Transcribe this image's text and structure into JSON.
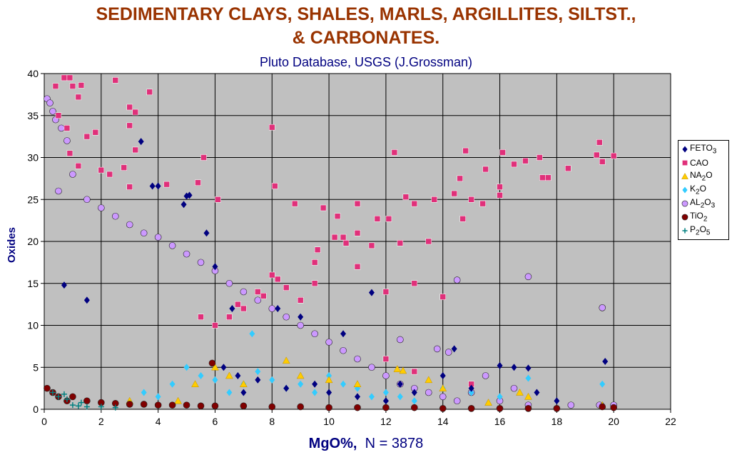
{
  "title_line1": "SEDIMENTARY CLAYS, SHALES, MARLS, ARGILLITES, SILTST.,",
  "title_line2": "& CARBONATES.",
  "subtitle": "Pluto Database, USGS (J.Grossman)",
  "xlabel_main": "MgO%,",
  "xlabel_count": "N = 3878",
  "ylabel": "Oxides",
  "chart_data": {
    "type": "scatter",
    "title": "SEDIMENTARY CLAYS, SHALES, MARLS, ARGILLITES, SILTST., & CARBONATES.",
    "subtitle": "Pluto Database, USGS (J.Grossman)",
    "xlabel": "MgO%,  N = 3878",
    "ylabel": "Oxides",
    "xlim": [
      0,
      22
    ],
    "ylim": [
      0,
      40
    ],
    "xticks": [
      0,
      2,
      4,
      6,
      8,
      10,
      12,
      14,
      16,
      18,
      20,
      22
    ],
    "yticks": [
      0,
      5,
      10,
      15,
      20,
      25,
      30,
      35,
      40
    ],
    "grid": true,
    "plot_background": "#c0c0c0",
    "legend_position": "right",
    "series": [
      {
        "name": "FETO3",
        "label_base": "FETO",
        "label_sub": "3",
        "marker": "diamond",
        "color": "#000080",
        "points": [
          [
            3.4,
            31.9
          ],
          [
            3.8,
            26.6
          ],
          [
            4.0,
            26.6
          ],
          [
            4.9,
            24.4
          ],
          [
            5.0,
            25.4
          ],
          [
            5.1,
            25.5
          ],
          [
            5.7,
            21.0
          ],
          [
            6.0,
            17.0
          ],
          [
            6.6,
            12.0
          ],
          [
            8.2,
            12.0
          ],
          [
            9.0,
            11.0
          ],
          [
            10.5,
            9.0
          ],
          [
            11.5,
            13.9
          ],
          [
            12.5,
            3.0
          ],
          [
            13.0,
            2.0
          ],
          [
            14.0,
            4.0
          ],
          [
            14.4,
            7.2
          ],
          [
            15.0,
            2.5
          ],
          [
            16.0,
            5.2
          ],
          [
            16.5,
            5.0
          ],
          [
            17.0,
            4.9
          ],
          [
            17.3,
            2.0
          ],
          [
            18.0,
            1.0
          ],
          [
            19.7,
            5.7
          ],
          [
            19.6,
            0.5
          ],
          [
            7.0,
            2.0
          ],
          [
            7.5,
            3.5
          ],
          [
            8.5,
            2.5
          ],
          [
            9.5,
            3.0
          ],
          [
            10.0,
            2.0
          ],
          [
            11.0,
            1.5
          ],
          [
            12.0,
            1.0
          ],
          [
            0.7,
            14.8
          ],
          [
            1.5,
            13.0
          ],
          [
            6.3,
            5.0
          ],
          [
            6.8,
            4.0
          ]
        ]
      },
      {
        "name": "CAO",
        "label_base": "CAO",
        "label_sub": "",
        "marker": "square",
        "color": "#e0307a",
        "points": [
          [
            0.7,
            39.5
          ],
          [
            0.9,
            39.5
          ],
          [
            0.4,
            38.5
          ],
          [
            1.0,
            38.5
          ],
          [
            1.3,
            38.6
          ],
          [
            1.2,
            37.2
          ],
          [
            2.5,
            39.2
          ],
          [
            3.0,
            36.0
          ],
          [
            3.2,
            35.4
          ],
          [
            3.7,
            37.8
          ],
          [
            0.5,
            35.0
          ],
          [
            0.8,
            33.5
          ],
          [
            1.5,
            32.5
          ],
          [
            1.8,
            33.0
          ],
          [
            3.0,
            33.8
          ],
          [
            3.2,
            30.9
          ],
          [
            0.9,
            30.5
          ],
          [
            1.2,
            29.0
          ],
          [
            2.0,
            28.5
          ],
          [
            2.3,
            28.0
          ],
          [
            2.8,
            28.8
          ],
          [
            3.0,
            26.5
          ],
          [
            4.3,
            26.8
          ],
          [
            5.4,
            27.0
          ],
          [
            5.6,
            30.0
          ],
          [
            6.1,
            25.0
          ],
          [
            8.0,
            33.6
          ],
          [
            8.1,
            26.6
          ],
          [
            8.8,
            24.5
          ],
          [
            9.8,
            24.0
          ],
          [
            10.3,
            23.0
          ],
          [
            11.0,
            24.5
          ],
          [
            11.7,
            22.7
          ],
          [
            12.1,
            22.7
          ],
          [
            12.3,
            30.6
          ],
          [
            12.7,
            25.3
          ],
          [
            13.0,
            24.5
          ],
          [
            13.7,
            25.0
          ],
          [
            14.4,
            25.7
          ],
          [
            14.6,
            27.5
          ],
          [
            14.8,
            30.8
          ],
          [
            15.4,
            24.5
          ],
          [
            15.5,
            28.6
          ],
          [
            16.0,
            25.5
          ],
          [
            16.1,
            30.6
          ],
          [
            16.5,
            29.2
          ],
          [
            16.9,
            29.6
          ],
          [
            17.4,
            30.0
          ],
          [
            17.5,
            27.6
          ],
          [
            18.4,
            28.7
          ],
          [
            19.5,
            31.8
          ],
          [
            19.4,
            30.3
          ],
          [
            19.6,
            29.5
          ],
          [
            20.0,
            30.2
          ],
          [
            14.7,
            22.7
          ],
          [
            15.0,
            25.0
          ],
          [
            16.0,
            26.5
          ],
          [
            17.7,
            27.6
          ],
          [
            10.2,
            20.5
          ],
          [
            10.6,
            19.8
          ],
          [
            11.5,
            19.5
          ],
          [
            12.5,
            19.8
          ],
          [
            13.5,
            20.0
          ],
          [
            9.6,
            19.0
          ],
          [
            8.0,
            16.0
          ],
          [
            8.5,
            14.5
          ],
          [
            9.0,
            13.0
          ],
          [
            9.5,
            15.0
          ],
          [
            7.5,
            14.0
          ],
          [
            7.0,
            12.0
          ],
          [
            6.5,
            11.0
          ],
          [
            6.0,
            10.0
          ],
          [
            5.5,
            11.0
          ],
          [
            11.0,
            17.0
          ],
          [
            12.0,
            14.0
          ],
          [
            13.0,
            15.0
          ],
          [
            14.0,
            13.4
          ],
          [
            10.5,
            20.5
          ],
          [
            11.0,
            21.0
          ],
          [
            9.5,
            17.5
          ],
          [
            8.2,
            15.5
          ],
          [
            7.7,
            13.5
          ],
          [
            6.8,
            12.5
          ],
          [
            12.0,
            6.0
          ],
          [
            13.0,
            4.5
          ],
          [
            15.0,
            3.0
          ]
        ]
      },
      {
        "name": "NA2O",
        "label_base": "NA",
        "label_sub": "2",
        "label_tail": "O",
        "marker": "triangle",
        "color": "#ffcc00",
        "points": [
          [
            6.0,
            5.0
          ],
          [
            6.5,
            4.0
          ],
          [
            7.0,
            3.0
          ],
          [
            8.5,
            5.8
          ],
          [
            9.0,
            4.0
          ],
          [
            10.0,
            3.5
          ],
          [
            11.0,
            3.0
          ],
          [
            12.4,
            4.8
          ],
          [
            12.6,
            4.6
          ],
          [
            13.5,
            3.5
          ],
          [
            14.0,
            2.5
          ],
          [
            15.6,
            0.8
          ],
          [
            16.7,
            2.0
          ],
          [
            17.0,
            1.5
          ],
          [
            19.6,
            0.5
          ],
          [
            5.3,
            3.0
          ],
          [
            4.7,
            1.0
          ],
          [
            3.0,
            1.0
          ]
        ]
      },
      {
        "name": "K2O",
        "label_base": "K",
        "label_sub": "2",
        "label_tail": "O",
        "marker": "diamond",
        "color": "#33ccff",
        "points": [
          [
            5.0,
            5.0
          ],
          [
            5.5,
            4.0
          ],
          [
            6.0,
            3.5
          ],
          [
            6.5,
            2.0
          ],
          [
            7.0,
            3.0
          ],
          [
            7.3,
            9.0
          ],
          [
            7.5,
            4.5
          ],
          [
            8.0,
            3.5
          ],
          [
            8.5,
            2.5
          ],
          [
            9.0,
            3.0
          ],
          [
            9.5,
            2.0
          ],
          [
            10.0,
            4.0
          ],
          [
            10.5,
            3.0
          ],
          [
            11.0,
            2.5
          ],
          [
            11.5,
            1.5
          ],
          [
            12.0,
            2.0
          ],
          [
            12.5,
            1.5
          ],
          [
            13.0,
            1.0
          ],
          [
            14.0,
            2.5
          ],
          [
            15.0,
            2.0
          ],
          [
            16.0,
            1.5
          ],
          [
            17.0,
            3.7
          ],
          [
            19.6,
            3.0
          ],
          [
            4.0,
            1.5
          ],
          [
            3.5,
            2.0
          ],
          [
            4.5,
            3.0
          ]
        ]
      },
      {
        "name": "AL2O3",
        "label_base": "AL",
        "label_sub": "2",
        "label_tail": "O",
        "label_sub2": "3",
        "marker": "circle",
        "color": "#cc99ff",
        "points": [
          [
            0.1,
            37.0
          ],
          [
            0.2,
            36.5
          ],
          [
            0.3,
            35.5
          ],
          [
            0.4,
            34.5
          ],
          [
            0.6,
            33.5
          ],
          [
            0.8,
            32.0
          ],
          [
            1.0,
            28.0
          ],
          [
            0.5,
            26.0
          ],
          [
            1.5,
            25.0
          ],
          [
            2.0,
            24.0
          ],
          [
            2.5,
            23.0
          ],
          [
            3.0,
            22.0
          ],
          [
            3.5,
            21.0
          ],
          [
            4.0,
            20.5
          ],
          [
            4.5,
            19.5
          ],
          [
            5.0,
            18.5
          ],
          [
            5.5,
            17.5
          ],
          [
            6.0,
            16.5
          ],
          [
            6.5,
            15.0
          ],
          [
            7.0,
            14.0
          ],
          [
            7.5,
            13.0
          ],
          [
            8.0,
            12.0
          ],
          [
            8.5,
            11.0
          ],
          [
            9.0,
            10.0
          ],
          [
            9.5,
            9.0
          ],
          [
            10.0,
            8.0
          ],
          [
            10.5,
            7.0
          ],
          [
            11.0,
            6.0
          ],
          [
            11.5,
            5.0
          ],
          [
            12.0,
            4.0
          ],
          [
            12.5,
            3.0
          ],
          [
            13.0,
            2.5
          ],
          [
            13.5,
            2.0
          ],
          [
            14.0,
            1.5
          ],
          [
            14.5,
            1.0
          ],
          [
            15.0,
            2.0
          ],
          [
            16.0,
            1.0
          ],
          [
            17.0,
            0.5
          ],
          [
            17.0,
            15.8
          ],
          [
            14.5,
            15.4
          ],
          [
            19.6,
            12.1
          ],
          [
            18.5,
            0.5
          ],
          [
            19.5,
            0.5
          ],
          [
            20.0,
            0.5
          ],
          [
            12.5,
            8.3
          ],
          [
            13.8,
            7.2
          ],
          [
            14.2,
            6.8
          ],
          [
            15.5,
            4.0
          ],
          [
            16.5,
            2.5
          ]
        ]
      },
      {
        "name": "TIO2",
        "label_base": "TiO",
        "label_sub": "2",
        "marker": "circle",
        "color": "#800000",
        "points": [
          [
            0.1,
            2.5
          ],
          [
            0.3,
            2.0
          ],
          [
            0.5,
            1.5
          ],
          [
            0.8,
            1.0
          ],
          [
            1.0,
            1.5
          ],
          [
            1.5,
            1.0
          ],
          [
            2.0,
            0.8
          ],
          [
            2.5,
            0.7
          ],
          [
            3.0,
            0.6
          ],
          [
            3.5,
            0.6
          ],
          [
            4.0,
            0.5
          ],
          [
            4.5,
            0.5
          ],
          [
            5.0,
            0.5
          ],
          [
            5.5,
            0.4
          ],
          [
            5.9,
            5.5
          ],
          [
            6.0,
            0.4
          ],
          [
            7.0,
            0.4
          ],
          [
            8.0,
            0.3
          ],
          [
            9.0,
            0.3
          ],
          [
            10.0,
            0.2
          ],
          [
            11.0,
            0.2
          ],
          [
            12.0,
            0.2
          ],
          [
            13.0,
            0.2
          ],
          [
            14.0,
            0.1
          ],
          [
            15.0,
            0.1
          ],
          [
            16.0,
            0.1
          ],
          [
            17.0,
            0.1
          ],
          [
            18.0,
            0.1
          ],
          [
            19.6,
            0.3
          ],
          [
            20.0,
            0.2
          ]
        ]
      },
      {
        "name": "P2O5",
        "label_base": "P",
        "label_sub": "2",
        "label_tail": "O",
        "label_sub2": "5",
        "marker": "plus",
        "color": "#008080",
        "points": [
          [
            0.5,
            1.5
          ],
          [
            0.8,
            1.2
          ],
          [
            1.0,
            0.5
          ],
          [
            1.2,
            0.4
          ],
          [
            1.5,
            0.3
          ],
          [
            2.0,
            0.3
          ],
          [
            2.5,
            0.2
          ],
          [
            0.3,
            2.0
          ],
          [
            0.7,
            1.8
          ],
          [
            1.3,
            0.8
          ]
        ]
      }
    ]
  }
}
